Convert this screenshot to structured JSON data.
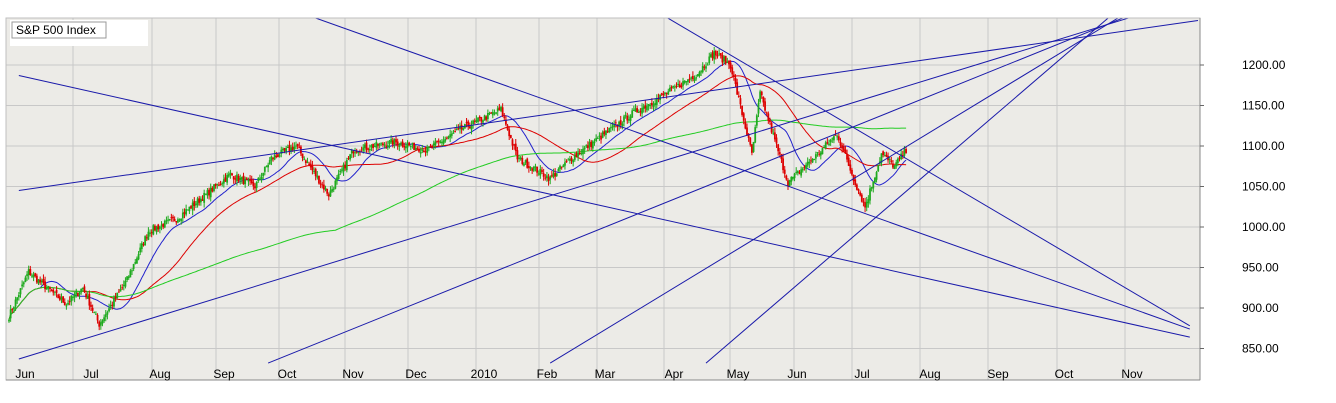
{
  "chart_data": {
    "type": "candlestick",
    "title": "S&P 500 Index",
    "xlabel": "",
    "ylabel": "",
    "x_tick_labels": [
      "Jun",
      "Jul",
      "Aug",
      "Sep",
      "Oct",
      "Nov",
      "Dec",
      "2010",
      "Feb",
      "Mar",
      "Apr",
      "May",
      "Jun",
      "Jul",
      "Aug",
      "Sep",
      "Oct",
      "Nov"
    ],
    "y_ticks": [
      850,
      900,
      950,
      1000,
      1050,
      1100,
      1150,
      1200
    ],
    "y_tick_labels": [
      "850.00",
      "900.00",
      "950.00",
      "1000.00",
      "1050.00",
      "1100.00",
      "1150.00",
      "1200.00"
    ],
    "ylim": [
      820,
      1260
    ],
    "grid": true,
    "colors": {
      "plot_bg": "#ecebe7",
      "grid": "#c8c8c8",
      "up": "#1faa1f",
      "down": "#dd0000",
      "ma_short": "#2222cc",
      "ma_medium": "#dd0000",
      "ma_long": "#22cc22",
      "trendline": "#1a1aaa"
    },
    "anchors": [
      [
        0,
        890
      ],
      [
        12,
        945
      ],
      [
        20,
        930
      ],
      [
        35,
        905
      ],
      [
        45,
        925
      ],
      [
        55,
        880
      ],
      [
        72,
        935
      ],
      [
        85,
        995
      ],
      [
        102,
        1010
      ],
      [
        120,
        1040
      ],
      [
        135,
        1065
      ],
      [
        150,
        1050
      ],
      [
        160,
        1085
      ],
      [
        175,
        1100
      ],
      [
        195,
        1040
      ],
      [
        210,
        1095
      ],
      [
        235,
        1105
      ],
      [
        255,
        1095
      ],
      [
        275,
        1120
      ],
      [
        300,
        1145
      ],
      [
        310,
        1085
      ],
      [
        330,
        1060
      ],
      [
        343,
        1085
      ],
      [
        360,
        1110
      ],
      [
        380,
        1140
      ],
      [
        405,
        1170
      ],
      [
        420,
        1190
      ],
      [
        430,
        1215
      ],
      [
        440,
        1200
      ],
      [
        447,
        1140
      ],
      [
        453,
        1090
      ],
      [
        458,
        1165
      ],
      [
        475,
        1055
      ],
      [
        493,
        1090
      ],
      [
        505,
        1115
      ],
      [
        515,
        1060
      ],
      [
        522,
        1025
      ],
      [
        532,
        1090
      ],
      [
        540,
        1075
      ],
      [
        547,
        1095
      ]
    ],
    "moving_averages": [
      {
        "name": "ma-short",
        "period": 20
      },
      {
        "name": "ma-medium",
        "period": 50
      },
      {
        "name": "ma-long",
        "period": 200
      }
    ],
    "trendlines": [
      {
        "from": [
          6,
          1045
        ],
        "to": [
          725,
          1255
        ]
      },
      {
        "from": [
          6,
          837
        ],
        "to": [
          710,
          1275
        ]
      },
      {
        "from": [
          158,
          832
        ],
        "to": [
          700,
          1275
        ]
      },
      {
        "from": [
          330,
          832
        ],
        "to": [
          690,
          1275
        ]
      },
      {
        "from": [
          425,
          832
        ],
        "to": [
          680,
          1275
        ]
      },
      {
        "from": [
          6,
          1187
        ],
        "to": [
          720,
          864
        ]
      },
      {
        "from": [
          155,
          1281
        ],
        "to": [
          720,
          874
        ]
      },
      {
        "from": [
          400,
          1260
        ],
        "to": [
          720,
          878
        ]
      }
    ]
  }
}
